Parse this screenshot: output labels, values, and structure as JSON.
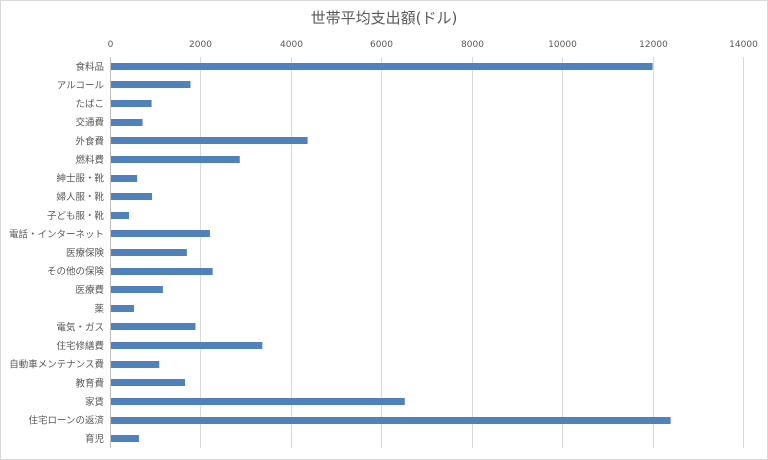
{
  "chart_data": {
    "type": "bar",
    "orientation": "horizontal",
    "title": "世帯平均支出額(ドル)",
    "xlabel": "",
    "ylabel": "",
    "xlim": [
      0,
      14000
    ],
    "xticks": [
      "0",
      "2000",
      "4000",
      "6000",
      "8000",
      "10000",
      "12000",
      "14000"
    ],
    "x_axis_position": "top",
    "grid": true,
    "legend": "none",
    "bar_color": "#4f81bd",
    "categories": [
      "食料品",
      "アルコール",
      "たばこ",
      "交通費",
      "外食費",
      "燃料費",
      "紳士服・靴",
      "婦人服・靴",
      "子ども服・靴",
      "電話・インターネット",
      "医療保険",
      "その他の保険",
      "医療費",
      "薬",
      "電気・ガス",
      "住宅修繕費",
      "自動車メンテナンス費",
      "教育費",
      "家賃",
      "住宅ローンの返済",
      "育児"
    ],
    "values": [
      12000,
      1780,
      920,
      720,
      4370,
      2870,
      600,
      930,
      420,
      2210,
      1700,
      2270,
      1170,
      530,
      1890,
      3370,
      1090,
      1660,
      6520,
      12400,
      640
    ]
  }
}
